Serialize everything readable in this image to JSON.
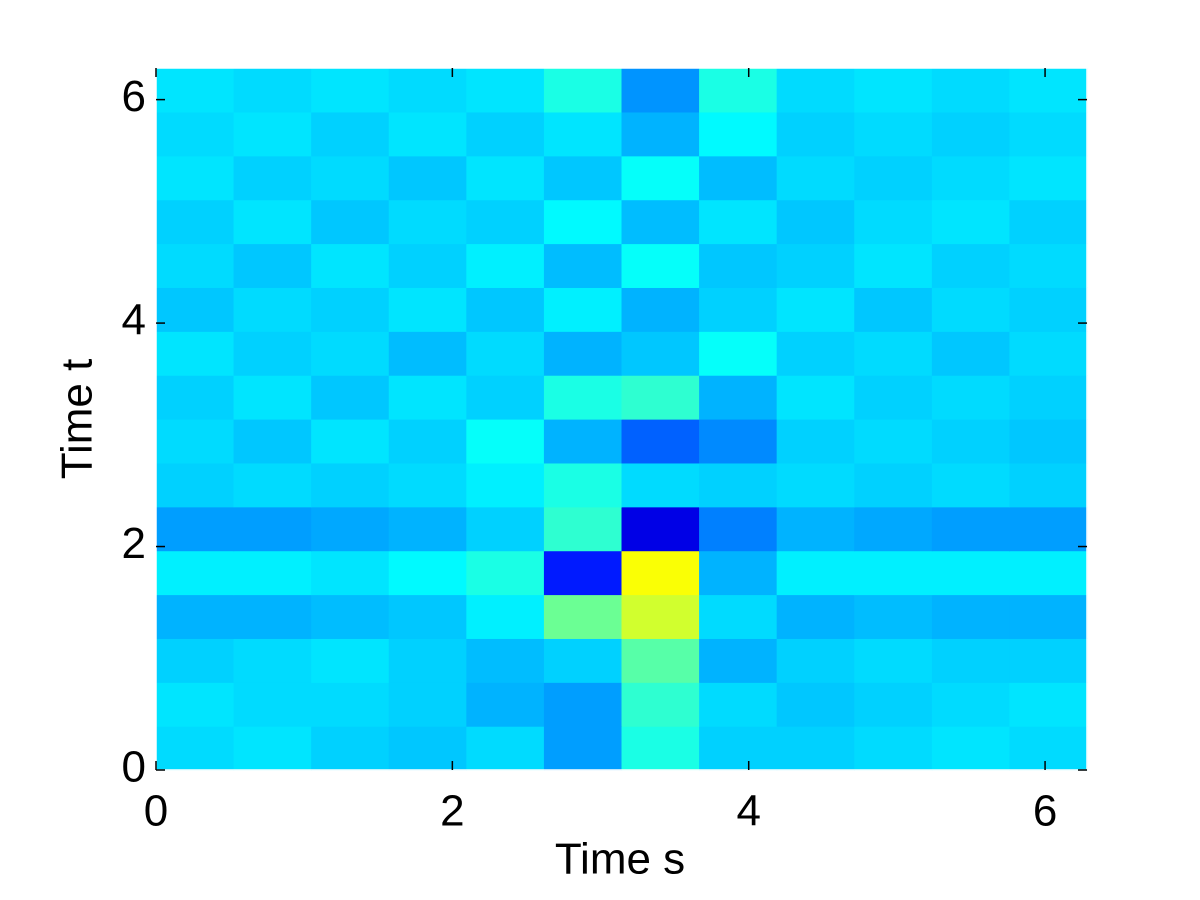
{
  "chart_data": {
    "type": "heatmap",
    "xlabel": "Time s",
    "ylabel": "Time t",
    "xlim": [
      0,
      6.283
    ],
    "ylim": [
      0,
      6.283
    ],
    "xticks": [
      0,
      2,
      4,
      6
    ],
    "yticks": [
      0,
      2,
      4,
      6
    ],
    "colormap": "jet",
    "z": [
      [
        0.34,
        0.35,
        0.33,
        0.32,
        0.34,
        0.28,
        0.4,
        0.33,
        0.33,
        0.34,
        0.35,
        0.34
      ],
      [
        0.35,
        0.34,
        0.34,
        0.33,
        0.3,
        0.28,
        0.42,
        0.34,
        0.32,
        0.33,
        0.34,
        0.35
      ],
      [
        0.33,
        0.34,
        0.35,
        0.33,
        0.31,
        0.33,
        0.46,
        0.3,
        0.33,
        0.34,
        0.33,
        0.33
      ],
      [
        0.3,
        0.3,
        0.31,
        0.32,
        0.36,
        0.48,
        0.58,
        0.34,
        0.3,
        0.31,
        0.3,
        0.3
      ],
      [
        0.36,
        0.36,
        0.35,
        0.37,
        0.4,
        0.15,
        0.62,
        0.3,
        0.36,
        0.36,
        0.36,
        0.36
      ],
      [
        0.28,
        0.28,
        0.29,
        0.3,
        0.33,
        0.42,
        0.1,
        0.25,
        0.3,
        0.29,
        0.28,
        0.28
      ],
      [
        0.33,
        0.34,
        0.33,
        0.34,
        0.36,
        0.4,
        0.34,
        0.33,
        0.34,
        0.33,
        0.34,
        0.33
      ],
      [
        0.34,
        0.32,
        0.35,
        0.33,
        0.38,
        0.3,
        0.22,
        0.26,
        0.33,
        0.34,
        0.33,
        0.32
      ],
      [
        0.33,
        0.35,
        0.32,
        0.35,
        0.33,
        0.4,
        0.42,
        0.3,
        0.35,
        0.33,
        0.34,
        0.33
      ],
      [
        0.35,
        0.33,
        0.34,
        0.31,
        0.34,
        0.3,
        0.32,
        0.38,
        0.33,
        0.34,
        0.32,
        0.34
      ],
      [
        0.32,
        0.34,
        0.33,
        0.35,
        0.32,
        0.36,
        0.3,
        0.33,
        0.35,
        0.32,
        0.34,
        0.33
      ],
      [
        0.34,
        0.32,
        0.35,
        0.33,
        0.36,
        0.31,
        0.38,
        0.32,
        0.33,
        0.35,
        0.33,
        0.34
      ],
      [
        0.33,
        0.35,
        0.32,
        0.34,
        0.33,
        0.37,
        0.31,
        0.35,
        0.32,
        0.34,
        0.35,
        0.33
      ],
      [
        0.35,
        0.33,
        0.34,
        0.32,
        0.35,
        0.32,
        0.38,
        0.31,
        0.34,
        0.33,
        0.34,
        0.35
      ],
      [
        0.34,
        0.35,
        0.33,
        0.35,
        0.33,
        0.35,
        0.3,
        0.37,
        0.33,
        0.34,
        0.33,
        0.34
      ],
      [
        0.35,
        0.34,
        0.35,
        0.34,
        0.35,
        0.4,
        0.27,
        0.4,
        0.34,
        0.35,
        0.34,
        0.35
      ]
    ]
  }
}
